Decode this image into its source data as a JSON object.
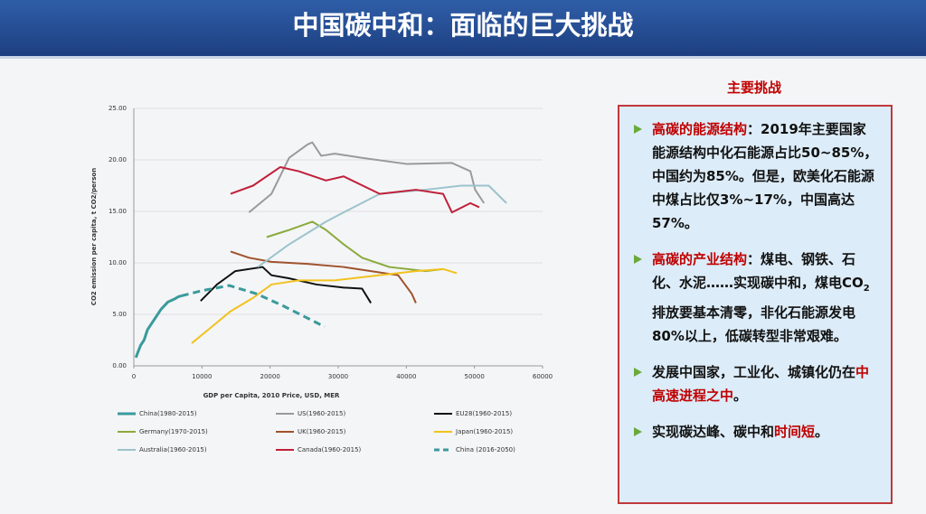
{
  "header": {
    "title": "中国碳中和：面临的巨大挑战"
  },
  "chart_data": {
    "type": "line",
    "xlabel": "GDP per Capita, 2010 Price, USD, MER",
    "ylabel": "CO2 emission per capita, t CO2/person",
    "xlim": [
      0,
      60000
    ],
    "xticks": [
      0,
      10000,
      20000,
      30000,
      40000,
      50000,
      60000
    ],
    "ylim": [
      0,
      25
    ],
    "yticks": [
      {
        "value": 0,
        "label": "0.00"
      },
      {
        "value": 5,
        "label": "5.00"
      },
      {
        "value": 10,
        "label": "10.00"
      },
      {
        "value": 15,
        "label": "15.00"
      },
      {
        "value": 20,
        "label": "20.00"
      },
      {
        "value": 25,
        "label": "25.00"
      }
    ],
    "grid": true,
    "series": [
      {
        "name": "China(1980-2015)",
        "color": "#3a9a9c",
        "width": 3,
        "x": [
          300,
          700,
          1000,
          1500,
          2000,
          3000,
          4000,
          5000,
          6000,
          6500,
          7000
        ],
        "values": [
          0.8,
          1.5,
          2,
          2.5,
          3.5,
          4.5,
          5.5,
          6.2,
          6.5,
          6.7,
          6.8
        ]
      },
      {
        "name": "US(1960-2015)",
        "color": "#9a9a9a",
        "width": 2,
        "x": [
          16900,
          20200,
          22800,
          25500,
          26200,
          27500,
          29500,
          33500,
          40100,
          46700,
          49400,
          50100,
          51400
        ],
        "values": [
          14.9,
          16.7,
          20.2,
          21.5,
          21.7,
          20.4,
          20.6,
          20.2,
          19.6,
          19.7,
          18.9,
          17.1,
          15.8
        ]
      },
      {
        "name": "EU28(1960-2015)",
        "color": "#111111",
        "width": 2,
        "x": [
          9800,
          12200,
          14900,
          18900,
          20200,
          22800,
          26800,
          30800,
          33500,
          34800
        ],
        "values": [
          6.3,
          7.9,
          9.2,
          9.6,
          8.8,
          8.5,
          7.9,
          7.6,
          7.5,
          6.1
        ]
      },
      {
        "name": "Germany(1970-2015)",
        "color": "#8aaa3a",
        "width": 2,
        "x": [
          19500,
          22800,
          26200,
          28200,
          30800,
          33500,
          37500,
          42800,
          45400
        ],
        "values": [
          12.5,
          13.2,
          14.0,
          13.2,
          11.8,
          10.5,
          9.6,
          9.2,
          9.4
        ]
      },
      {
        "name": "UK(1960-2015)",
        "color": "#a0522d",
        "width": 2,
        "x": [
          14200,
          16900,
          20200,
          25500,
          30800,
          34800,
          38800,
          40800,
          41400
        ],
        "values": [
          11.1,
          10.5,
          10.1,
          9.9,
          9.6,
          9.2,
          8.8,
          7.0,
          6.1
        ]
      },
      {
        "name": "Japan(1960-2015)",
        "color": "#f2c21e",
        "width": 2,
        "x": [
          8500,
          10900,
          14200,
          17500,
          20200,
          24200,
          29500,
          36100,
          41400,
          45400,
          47400
        ],
        "values": [
          2.2,
          3.5,
          5.3,
          6.6,
          7.9,
          8.3,
          8.3,
          8.8,
          9.2,
          9.4,
          9.0
        ]
      },
      {
        "name": "Australia(1960-2015)",
        "color": "#9cc3cc",
        "width": 2,
        "x": [
          18200,
          22800,
          28200,
          30800,
          36100,
          42800,
          48100,
          52100,
          54700
        ],
        "values": [
          9.6,
          11.8,
          14.0,
          14.9,
          16.7,
          17.1,
          17.5,
          17.5,
          15.8
        ]
      },
      {
        "name": "Canada(1960-2015)",
        "color": "#c0203a",
        "width": 2,
        "x": [
          14200,
          17500,
          21500,
          24200,
          28200,
          30800,
          36100,
          41400,
          45400,
          46700,
          49400,
          50700
        ],
        "values": [
          16.7,
          17.5,
          19.3,
          18.9,
          18.0,
          18.4,
          16.7,
          17.1,
          16.7,
          14.9,
          15.8,
          15.4
        ]
      },
      {
        "name": "China (2016-2050)",
        "color": "#3a9a9c",
        "width": 3,
        "dashed": true,
        "x": [
          7000,
          10000,
          14000,
          18000,
          22000,
          25000,
          28000
        ],
        "values": [
          6.8,
          7.3,
          7.8,
          7.0,
          5.8,
          4.8,
          3.8
        ]
      }
    ]
  },
  "panel": {
    "title": "主要挑战",
    "bullets": [
      {
        "parts": [
          {
            "text": "高碳的能源结构",
            "color": "#c00000"
          },
          {
            "text": "：2019年主要国家能源结构中化石能源占比50~85%，中国约为85%。但是，欧美化石能源中煤占比仅3%~17%，中国高达57%。"
          }
        ]
      },
      {
        "parts": [
          {
            "text": "高碳的产业结构",
            "color": "#c00000"
          },
          {
            "text": "：煤电、钢铁、石化、水泥……实现碳中和，煤电CO"
          },
          {
            "text": "2",
            "sub": true
          },
          {
            "text": "排放要基本清零，非化石能源发电80%以上，低碳转型非常艰难。"
          }
        ]
      },
      {
        "parts": [
          {
            "text": "发展中国家，工业化、城镇化仍在"
          },
          {
            "text": "中高速进程之中",
            "color": "#c00000"
          },
          {
            "text": "。"
          }
        ]
      },
      {
        "parts": [
          {
            "text": "实现碳达峰、碳中和"
          },
          {
            "text": "时间短",
            "color": "#c00000"
          },
          {
            "text": "。"
          }
        ]
      }
    ]
  }
}
